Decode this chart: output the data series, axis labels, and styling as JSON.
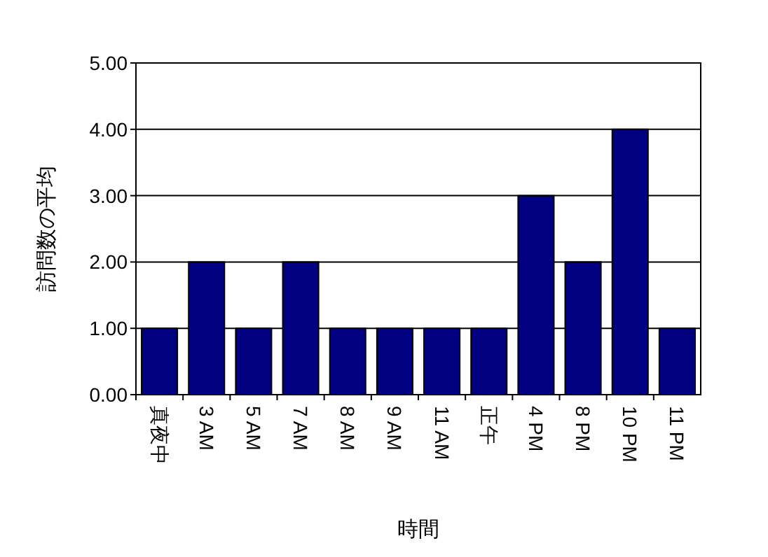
{
  "chart_data": {
    "type": "bar",
    "xlabel": "時間",
    "ylabel": "訪問数の平均",
    "categories": [
      "真夜中",
      "3 AM",
      "5 AM",
      "7 AM",
      "8 AM",
      "9 AM",
      "11 AM",
      "正午",
      "4 PM",
      "8 PM",
      "10 PM",
      "11 PM"
    ],
    "values": [
      1,
      2,
      1,
      2,
      1,
      1,
      1,
      1,
      3,
      2,
      4,
      1
    ],
    "color": "#000080",
    "ylim": [
      0,
      5
    ],
    "yticks": [
      {
        "value": 0,
        "label": "0.00"
      },
      {
        "value": 1,
        "label": "1.00"
      },
      {
        "value": 2,
        "label": "2.00"
      },
      {
        "value": 3,
        "label": "3.00"
      },
      {
        "value": 4,
        "label": "4.00"
      },
      {
        "value": 5,
        "label": "5.00"
      }
    ],
    "grid": "y"
  }
}
